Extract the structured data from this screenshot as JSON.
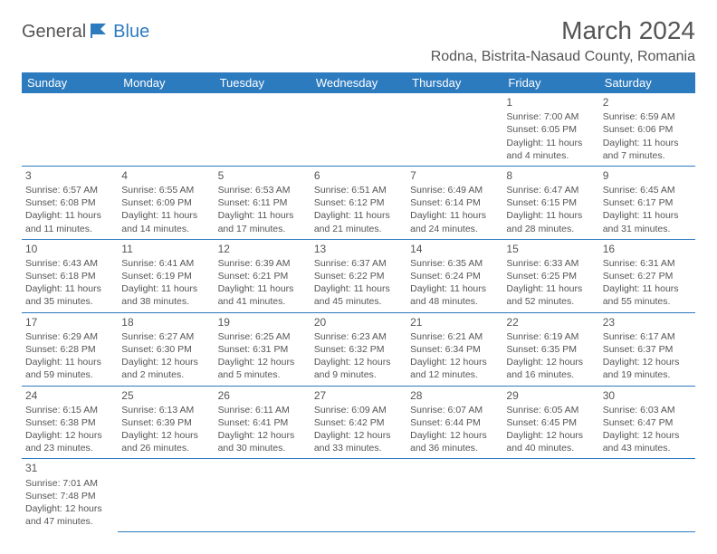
{
  "logo": {
    "part1": "General",
    "part2": "Blue"
  },
  "title": "March 2024",
  "location": "Rodna, Bistrita-Nasaud County, Romania",
  "colors": {
    "header_bg": "#2d7bbf",
    "header_fg": "#ffffff",
    "text": "#555555",
    "rule": "#2d7bbf"
  },
  "day_headers": [
    "Sunday",
    "Monday",
    "Tuesday",
    "Wednesday",
    "Thursday",
    "Friday",
    "Saturday"
  ],
  "weeks": [
    [
      null,
      null,
      null,
      null,
      null,
      {
        "n": "1",
        "sr": "Sunrise: 7:00 AM",
        "ss": "Sunset: 6:05 PM",
        "d1": "Daylight: 11 hours",
        "d2": "and 4 minutes."
      },
      {
        "n": "2",
        "sr": "Sunrise: 6:59 AM",
        "ss": "Sunset: 6:06 PM",
        "d1": "Daylight: 11 hours",
        "d2": "and 7 minutes."
      }
    ],
    [
      {
        "n": "3",
        "sr": "Sunrise: 6:57 AM",
        "ss": "Sunset: 6:08 PM",
        "d1": "Daylight: 11 hours",
        "d2": "and 11 minutes."
      },
      {
        "n": "4",
        "sr": "Sunrise: 6:55 AM",
        "ss": "Sunset: 6:09 PM",
        "d1": "Daylight: 11 hours",
        "d2": "and 14 minutes."
      },
      {
        "n": "5",
        "sr": "Sunrise: 6:53 AM",
        "ss": "Sunset: 6:11 PM",
        "d1": "Daylight: 11 hours",
        "d2": "and 17 minutes."
      },
      {
        "n": "6",
        "sr": "Sunrise: 6:51 AM",
        "ss": "Sunset: 6:12 PM",
        "d1": "Daylight: 11 hours",
        "d2": "and 21 minutes."
      },
      {
        "n": "7",
        "sr": "Sunrise: 6:49 AM",
        "ss": "Sunset: 6:14 PM",
        "d1": "Daylight: 11 hours",
        "d2": "and 24 minutes."
      },
      {
        "n": "8",
        "sr": "Sunrise: 6:47 AM",
        "ss": "Sunset: 6:15 PM",
        "d1": "Daylight: 11 hours",
        "d2": "and 28 minutes."
      },
      {
        "n": "9",
        "sr": "Sunrise: 6:45 AM",
        "ss": "Sunset: 6:17 PM",
        "d1": "Daylight: 11 hours",
        "d2": "and 31 minutes."
      }
    ],
    [
      {
        "n": "10",
        "sr": "Sunrise: 6:43 AM",
        "ss": "Sunset: 6:18 PM",
        "d1": "Daylight: 11 hours",
        "d2": "and 35 minutes."
      },
      {
        "n": "11",
        "sr": "Sunrise: 6:41 AM",
        "ss": "Sunset: 6:19 PM",
        "d1": "Daylight: 11 hours",
        "d2": "and 38 minutes."
      },
      {
        "n": "12",
        "sr": "Sunrise: 6:39 AM",
        "ss": "Sunset: 6:21 PM",
        "d1": "Daylight: 11 hours",
        "d2": "and 41 minutes."
      },
      {
        "n": "13",
        "sr": "Sunrise: 6:37 AM",
        "ss": "Sunset: 6:22 PM",
        "d1": "Daylight: 11 hours",
        "d2": "and 45 minutes."
      },
      {
        "n": "14",
        "sr": "Sunrise: 6:35 AM",
        "ss": "Sunset: 6:24 PM",
        "d1": "Daylight: 11 hours",
        "d2": "and 48 minutes."
      },
      {
        "n": "15",
        "sr": "Sunrise: 6:33 AM",
        "ss": "Sunset: 6:25 PM",
        "d1": "Daylight: 11 hours",
        "d2": "and 52 minutes."
      },
      {
        "n": "16",
        "sr": "Sunrise: 6:31 AM",
        "ss": "Sunset: 6:27 PM",
        "d1": "Daylight: 11 hours",
        "d2": "and 55 minutes."
      }
    ],
    [
      {
        "n": "17",
        "sr": "Sunrise: 6:29 AM",
        "ss": "Sunset: 6:28 PM",
        "d1": "Daylight: 11 hours",
        "d2": "and 59 minutes."
      },
      {
        "n": "18",
        "sr": "Sunrise: 6:27 AM",
        "ss": "Sunset: 6:30 PM",
        "d1": "Daylight: 12 hours",
        "d2": "and 2 minutes."
      },
      {
        "n": "19",
        "sr": "Sunrise: 6:25 AM",
        "ss": "Sunset: 6:31 PM",
        "d1": "Daylight: 12 hours",
        "d2": "and 5 minutes."
      },
      {
        "n": "20",
        "sr": "Sunrise: 6:23 AM",
        "ss": "Sunset: 6:32 PM",
        "d1": "Daylight: 12 hours",
        "d2": "and 9 minutes."
      },
      {
        "n": "21",
        "sr": "Sunrise: 6:21 AM",
        "ss": "Sunset: 6:34 PM",
        "d1": "Daylight: 12 hours",
        "d2": "and 12 minutes."
      },
      {
        "n": "22",
        "sr": "Sunrise: 6:19 AM",
        "ss": "Sunset: 6:35 PM",
        "d1": "Daylight: 12 hours",
        "d2": "and 16 minutes."
      },
      {
        "n": "23",
        "sr": "Sunrise: 6:17 AM",
        "ss": "Sunset: 6:37 PM",
        "d1": "Daylight: 12 hours",
        "d2": "and 19 minutes."
      }
    ],
    [
      {
        "n": "24",
        "sr": "Sunrise: 6:15 AM",
        "ss": "Sunset: 6:38 PM",
        "d1": "Daylight: 12 hours",
        "d2": "and 23 minutes."
      },
      {
        "n": "25",
        "sr": "Sunrise: 6:13 AM",
        "ss": "Sunset: 6:39 PM",
        "d1": "Daylight: 12 hours",
        "d2": "and 26 minutes."
      },
      {
        "n": "26",
        "sr": "Sunrise: 6:11 AM",
        "ss": "Sunset: 6:41 PM",
        "d1": "Daylight: 12 hours",
        "d2": "and 30 minutes."
      },
      {
        "n": "27",
        "sr": "Sunrise: 6:09 AM",
        "ss": "Sunset: 6:42 PM",
        "d1": "Daylight: 12 hours",
        "d2": "and 33 minutes."
      },
      {
        "n": "28",
        "sr": "Sunrise: 6:07 AM",
        "ss": "Sunset: 6:44 PM",
        "d1": "Daylight: 12 hours",
        "d2": "and 36 minutes."
      },
      {
        "n": "29",
        "sr": "Sunrise: 6:05 AM",
        "ss": "Sunset: 6:45 PM",
        "d1": "Daylight: 12 hours",
        "d2": "and 40 minutes."
      },
      {
        "n": "30",
        "sr": "Sunrise: 6:03 AM",
        "ss": "Sunset: 6:47 PM",
        "d1": "Daylight: 12 hours",
        "d2": "and 43 minutes."
      }
    ],
    [
      {
        "n": "31",
        "sr": "Sunrise: 7:01 AM",
        "ss": "Sunset: 7:48 PM",
        "d1": "Daylight: 12 hours",
        "d2": "and 47 minutes."
      },
      null,
      null,
      null,
      null,
      null,
      null
    ]
  ]
}
